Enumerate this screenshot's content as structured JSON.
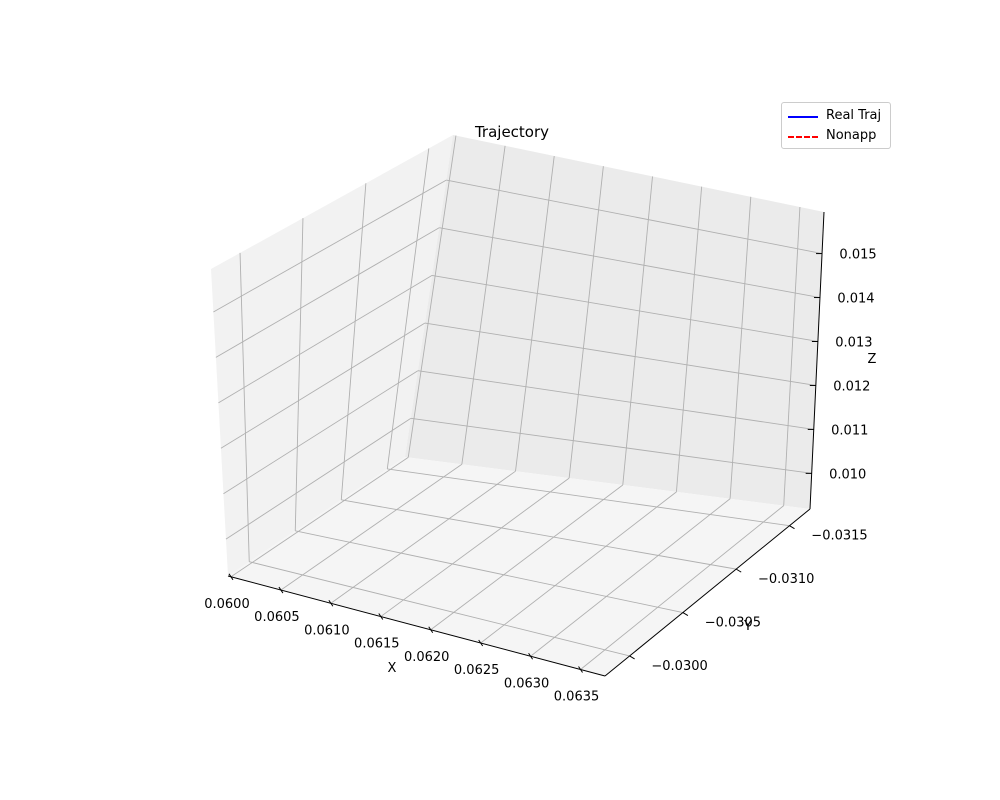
{
  "chart_data": {
    "type": "line",
    "projection": "3d",
    "title": "Trajectory",
    "xlabel": "X",
    "ylabel": "Y",
    "zlabel": "Z",
    "x_ticks": [
      "0.0600",
      "0.0605",
      "0.0610",
      "0.0615",
      "0.0620",
      "0.0625",
      "0.0630",
      "0.0635"
    ],
    "y_ticks": [
      "−0.0315",
      "−0.0310",
      "−0.0305",
      "−0.0300"
    ],
    "z_ticks": [
      "0.010",
      "0.011",
      "0.012",
      "0.013",
      "0.014",
      "0.015"
    ],
    "grid": true,
    "legend_position": "top-right",
    "series": [
      {
        "name": "Real Traj",
        "color": "#0000ff",
        "linestyle": "solid",
        "points": []
      },
      {
        "name": "Nonapp",
        "color": "#ff0000",
        "linestyle": "dashed",
        "points": []
      }
    ],
    "pane_colors": {
      "left": "#f2f2f2",
      "back": "#ebebeb",
      "floor": "#f5f5f5",
      "grid": "#b0b0b0"
    }
  }
}
